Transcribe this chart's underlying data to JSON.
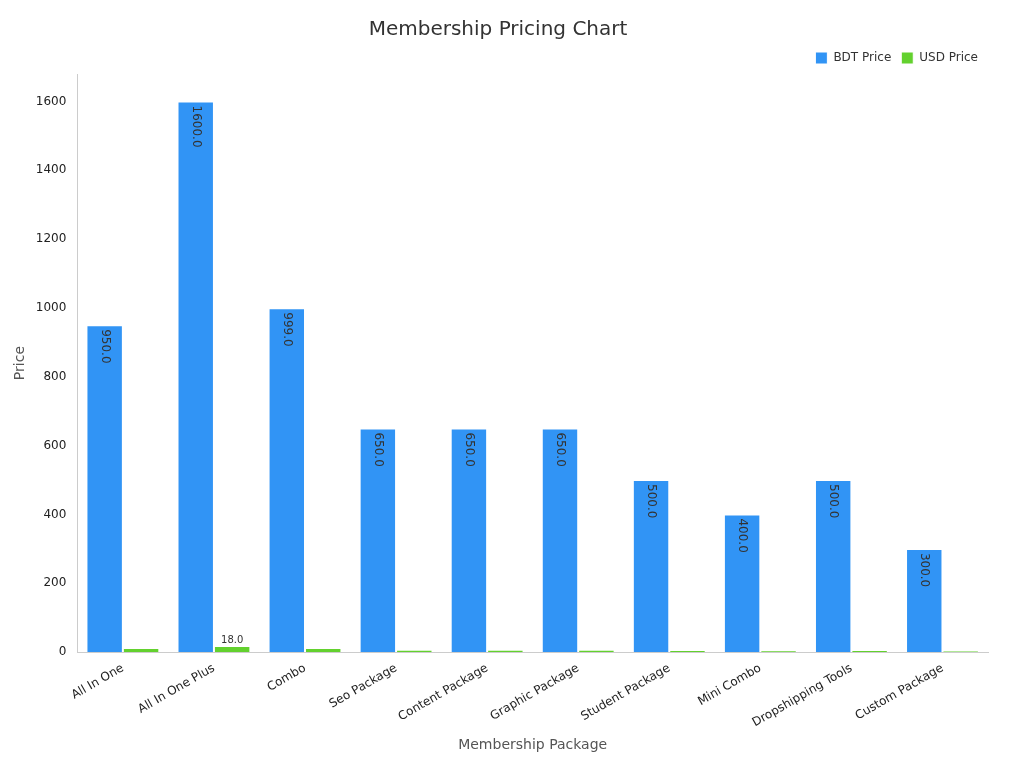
{
  "chart_data": {
    "type": "bar",
    "title": "Membership Pricing Chart",
    "xlabel": "Membership Package",
    "ylabel": "Price",
    "categories": [
      "All In One",
      "All In One Plus",
      "Combo",
      "Seo Package",
      "Content Package",
      "Graphic Package",
      "Student Package",
      "Mini Combo",
      "Dropshipping Tools",
      "Custom Package"
    ],
    "series": [
      {
        "name": "BDT Price",
        "color": "#3194f5",
        "values": [
          950,
          1600,
          999,
          650,
          650,
          650,
          500,
          400,
          500,
          300
        ],
        "value_labels": [
          "950.0",
          "1600.0",
          "999.0",
          "650.0",
          "650.0",
          "650.0",
          "500.0",
          "400.0",
          "500.0",
          "300.0"
        ]
      },
      {
        "name": "USD Price",
        "color": "#63d12e",
        "values": [
          12,
          18,
          12,
          7,
          7,
          7,
          6,
          5,
          6,
          4
        ],
        "value_labels": [
          null,
          "18.0",
          null,
          null,
          null,
          null,
          null,
          null,
          null,
          null
        ]
      }
    ],
    "ylim": [
      0,
      1680
    ],
    "yticks": [
      0,
      200,
      400,
      600,
      800,
      1000,
      1200,
      1400,
      1600
    ],
    "grid": false,
    "legend": "top right"
  }
}
